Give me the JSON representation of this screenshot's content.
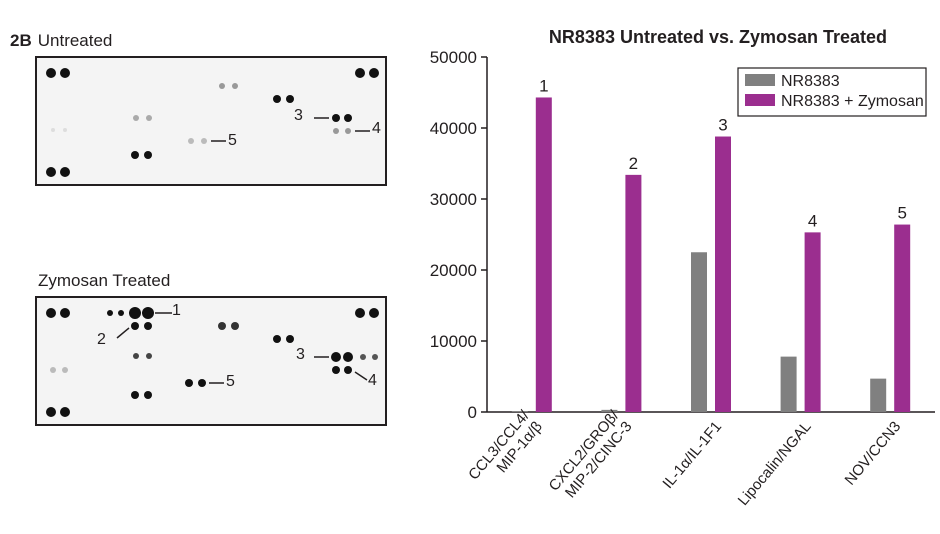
{
  "figure": {
    "panel_tag": "2B",
    "untreated_label": "Untreated",
    "treated_label": "Zymosan Treated"
  },
  "callouts": {
    "untreated": [
      {
        "text": "3"
      },
      {
        "text": "4"
      },
      {
        "text": "5"
      }
    ],
    "treated": [
      {
        "text": "1"
      },
      {
        "text": "2"
      },
      {
        "text": "3"
      },
      {
        "text": "4"
      },
      {
        "text": "5"
      }
    ]
  },
  "chart_data": {
    "type": "bar",
    "title": "NR8383 Untreated vs. Zymosan Treated",
    "xlabel": "",
    "ylabel": "",
    "ylim": [
      0,
      50000
    ],
    "yticks": [
      "0",
      "10000",
      "20000",
      "30000",
      "40000",
      "50000"
    ],
    "categories": [
      "CCL3/CCL4/\nMIP-1α/β",
      "CXCL2/GROβ/\nMIP-2/CINC-3",
      "IL-1α/IL-1F1",
      "Lipocalin/NGAL",
      "NOV/CCN3"
    ],
    "bar_labels": [
      "1",
      "2",
      "3",
      "4",
      "5"
    ],
    "series": [
      {
        "name": "NR8383",
        "color": "#808080",
        "values": [
          100,
          300,
          22500,
          7800,
          4700
        ]
      },
      {
        "name": "NR8383 + Zymosan",
        "color": "#9b2e8f",
        "values": [
          44300,
          33400,
          38800,
          25300,
          26400
        ]
      }
    ],
    "legend_position": "top-right",
    "grid": false
  }
}
